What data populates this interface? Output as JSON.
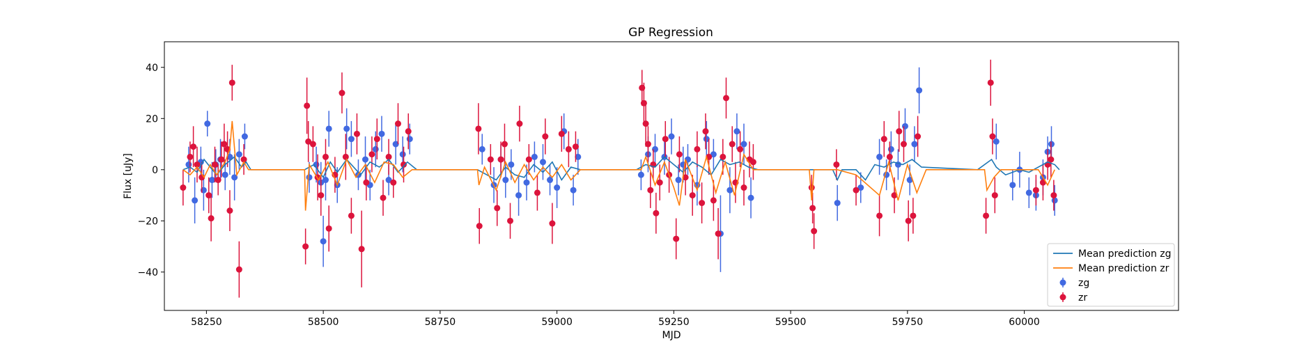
{
  "chart_data": {
    "type": "scatter",
    "title": "GP Regression",
    "xlabel": "MJD",
    "ylabel": "Flux [uJy]",
    "xlim": [
      58160,
      60330
    ],
    "ylim": [
      -55,
      50
    ],
    "xticks": [
      58250,
      58500,
      58750,
      59000,
      59250,
      59500,
      59750,
      60000
    ],
    "yticks": [
      -40,
      -20,
      0,
      20,
      40
    ],
    "grid": false,
    "legend_position": "lower-right",
    "colors": {
      "zg": "#4169e1",
      "zr": "#dc143c",
      "pred_zg": "#1f77b4",
      "pred_zr": "#ff7f0e"
    },
    "legend": [
      "Mean prediction zg",
      "Mean prediction zr",
      "zg",
      "zr"
    ],
    "series": [
      {
        "name": "zg",
        "kind": "errorbar",
        "x": [
          58212,
          58225,
          58238,
          58244,
          58252,
          58262,
          58270,
          58280,
          58290,
          58300,
          58310,
          58320,
          58332,
          58470,
          58485,
          58495,
          58500,
          58505,
          58512,
          58530,
          58550,
          58560,
          58575,
          58590,
          58600,
          58612,
          58625,
          58640,
          58655,
          58670,
          58685,
          58840,
          58865,
          58880,
          58890,
          58902,
          58918,
          58935,
          58952,
          58970,
          58985,
          59000,
          59015,
          59035,
          59045,
          59180,
          59195,
          59210,
          59230,
          59245,
          59260,
          59270,
          59280,
          59300,
          59320,
          59335,
          59350,
          59370,
          59385,
          59400,
          59415,
          59600,
          59650,
          59690,
          59705,
          59715,
          59730,
          59745,
          59755,
          59765,
          59775,
          59940,
          59975,
          59990,
          60010,
          60025,
          60040,
          60050,
          60058,
          60065
        ],
        "y": [
          2,
          -12,
          3,
          -8,
          18,
          -4,
          2,
          4,
          -2,
          5,
          -3,
          6,
          13,
          -3,
          2,
          -5,
          -28,
          -4,
          16,
          -6,
          16,
          12,
          -2,
          4,
          -6,
          8,
          14,
          -4,
          10,
          6,
          12,
          8,
          -6,
          4,
          -4,
          2,
          -10,
          -5,
          5,
          3,
          -4,
          -7,
          15,
          -8,
          5,
          -2,
          6,
          8,
          5,
          13,
          -4,
          2,
          4,
          -6,
          12,
          6,
          -25,
          -8,
          15,
          10,
          -11,
          -13,
          -7,
          5,
          -2,
          8,
          2,
          17,
          -4,
          10,
          31,
          11,
          -6,
          0,
          -9,
          -10,
          -3,
          7,
          10,
          -12
        ],
        "yerr": [
          7,
          9,
          6,
          8,
          5,
          7,
          6,
          8,
          6,
          7,
          9,
          6,
          5,
          6,
          7,
          8,
          10,
          8,
          7,
          7,
          8,
          7,
          6,
          9,
          6,
          7,
          7,
          6,
          8,
          7,
          6,
          6,
          7,
          6,
          7,
          6,
          8,
          7,
          6,
          7,
          6,
          8,
          7,
          6,
          7,
          6,
          7,
          6,
          7,
          7,
          6,
          7,
          6,
          8,
          7,
          6,
          15,
          9,
          7,
          8,
          8,
          7,
          6,
          7,
          6,
          7,
          6,
          7,
          6,
          7,
          9,
          7,
          6,
          7,
          6,
          6,
          7,
          6,
          7,
          6
        ]
      },
      {
        "name": "zr",
        "kind": "errorbar",
        "x": [
          58200,
          58215,
          58222,
          58230,
          58240,
          58255,
          58260,
          58268,
          58275,
          58282,
          58288,
          58295,
          58300,
          58305,
          58320,
          58330,
          58462,
          58465,
          58468,
          58478,
          58488,
          58495,
          58505,
          58512,
          58525,
          58540,
          58548,
          58560,
          58572,
          58582,
          58592,
          58604,
          58615,
          58628,
          58640,
          58650,
          58660,
          58672,
          58682,
          58832,
          58834,
          58858,
          58872,
          58880,
          58888,
          58900,
          58920,
          58940,
          58958,
          58975,
          58990,
          59010,
          59025,
          59040,
          59182,
          59186,
          59190,
          59195,
          59200,
          59206,
          59212,
          59220,
          59232,
          59240,
          59255,
          59262,
          59275,
          59290,
          59300,
          59310,
          59318,
          59325,
          59335,
          59345,
          59355,
          59362,
          59375,
          59382,
          59392,
          59400,
          59412,
          59420,
          59545,
          59547,
          59550,
          59598,
          59640,
          59690,
          59700,
          59712,
          59722,
          59732,
          59742,
          59752,
          59762,
          59772,
          59918,
          59928,
          59932,
          59937,
          60025,
          60040,
          60050,
          60057,
          60063
        ],
        "y": [
          -7,
          5,
          9,
          2,
          -3,
          -10,
          -19,
          2,
          -4,
          4,
          10,
          8,
          -16,
          34,
          -39,
          4,
          -30,
          25,
          11,
          10,
          -3,
          -10,
          5,
          -23,
          -2,
          30,
          5,
          -18,
          14,
          -31,
          -5,
          6,
          12,
          -11,
          5,
          -5,
          18,
          2,
          15,
          16,
          -22,
          4,
          -15,
          4,
          10,
          -20,
          18,
          4,
          -9,
          13,
          -21,
          14,
          8,
          9,
          32,
          26,
          18,
          10,
          -8,
          2,
          -17,
          -5,
          12,
          -2,
          -27,
          6,
          -3,
          -10,
          8,
          -13,
          15,
          5,
          -12,
          -25,
          5,
          28,
          10,
          -5,
          8,
          -7,
          4,
          3,
          -7,
          -15,
          -24,
          2,
          -8,
          -18,
          12,
          5,
          -10,
          15,
          10,
          -20,
          -18,
          13,
          -18,
          34,
          13,
          -10,
          -8,
          -5,
          2,
          4,
          -10
        ],
        "yerr": [
          7,
          6,
          8,
          7,
          6,
          7,
          9,
          7,
          6,
          7,
          8,
          7,
          8,
          7,
          11,
          6,
          7,
          11,
          8,
          7,
          9,
          8,
          7,
          9,
          7,
          8,
          9,
          7,
          8,
          15,
          7,
          7,
          8,
          7,
          7,
          6,
          8,
          7,
          7,
          10,
          7,
          6,
          7,
          7,
          8,
          7,
          7,
          6,
          7,
          7,
          8,
          7,
          7,
          6,
          7,
          8,
          9,
          7,
          7,
          6,
          8,
          7,
          7,
          7,
          8,
          7,
          7,
          8,
          7,
          8,
          7,
          7,
          8,
          10,
          7,
          8,
          7,
          8,
          7,
          7,
          7,
          7,
          5,
          6,
          7,
          6,
          6,
          8,
          7,
          6,
          7,
          8,
          7,
          8,
          7,
          8,
          7,
          9,
          7,
          7,
          6,
          7,
          6,
          7,
          6
        ]
      },
      {
        "name": "Mean prediction zg",
        "kind": "line",
        "x": [
          58200,
          58215,
          58230,
          58245,
          58258,
          58272,
          58290,
          58310,
          58325,
          58335,
          58345,
          58460,
          58480,
          58500,
          58515,
          58530,
          58550,
          58565,
          58580,
          58600,
          58620,
          58640,
          58660,
          58680,
          58700,
          58830,
          58850,
          58870,
          58890,
          58910,
          58930,
          58950,
          58970,
          58990,
          59010,
          59030,
          59050,
          59170,
          59190,
          59210,
          59230,
          59250,
          59270,
          59290,
          59310,
          59330,
          59350,
          59370,
          59390,
          59410,
          59430,
          59590,
          59600,
          59610,
          59640,
          59660,
          59680,
          59700,
          59720,
          59740,
          59760,
          59780,
          59900,
          59930,
          59940,
          59960,
          59990,
          60010,
          60030,
          60050,
          60065,
          60075
        ],
        "y": [
          0,
          1,
          -1,
          4,
          1,
          -2,
          2,
          5,
          1,
          3,
          0,
          0,
          2,
          -3,
          3,
          -1,
          4,
          1,
          -2,
          3,
          1,
          4,
          -1,
          3,
          0,
          0,
          -2,
          -4,
          1,
          -2,
          -3,
          2,
          -1,
          3,
          -4,
          1,
          0,
          0,
          2,
          1,
          5,
          2,
          -1,
          3,
          1,
          -2,
          4,
          2,
          3,
          1,
          0,
          0,
          -4,
          0,
          0,
          -4,
          2,
          1,
          3,
          2,
          4,
          1,
          0,
          4,
          1,
          -2,
          0,
          -1,
          1,
          3,
          2,
          0
        ]
      },
      {
        "name": "Mean prediction zr",
        "kind": "line",
        "x": [
          58200,
          58215,
          58230,
          58245,
          58258,
          58272,
          58290,
          58300,
          58305,
          58315,
          58330,
          58340,
          58460,
          58462,
          58470,
          58490,
          58510,
          58530,
          58550,
          58570,
          58590,
          58610,
          58630,
          58650,
          58670,
          58690,
          58830,
          58833,
          58845,
          58870,
          58890,
          58910,
          58930,
          58950,
          58970,
          58990,
          59010,
          59030,
          59050,
          59180,
          59190,
          59210,
          59230,
          59250,
          59262,
          59275,
          59300,
          59320,
          59340,
          59360,
          59380,
          59400,
          59420,
          59540,
          59545,
          59550,
          59600,
          59640,
          59690,
          59710,
          59730,
          59750,
          59770,
          59790,
          59915,
          59920,
          59935,
          59950,
          60030,
          60050,
          60065
        ],
        "y": [
          0,
          -2,
          1,
          -3,
          2,
          -2,
          3,
          8,
          19,
          -2,
          3,
          0,
          0,
          -16,
          2,
          -4,
          3,
          -6,
          4,
          -3,
          2,
          -5,
          3,
          2,
          -3,
          0,
          0,
          -6,
          1,
          -8,
          3,
          -5,
          2,
          -4,
          1,
          -3,
          2,
          -4,
          0,
          0,
          5,
          -6,
          3,
          -7,
          -14,
          4,
          -8,
          5,
          -9,
          3,
          -10,
          6,
          0,
          0,
          -12,
          0,
          0,
          -2,
          -10,
          3,
          -12,
          2,
          -9,
          0,
          0,
          -8,
          -3,
          0,
          0,
          -6,
          0
        ]
      }
    ]
  }
}
